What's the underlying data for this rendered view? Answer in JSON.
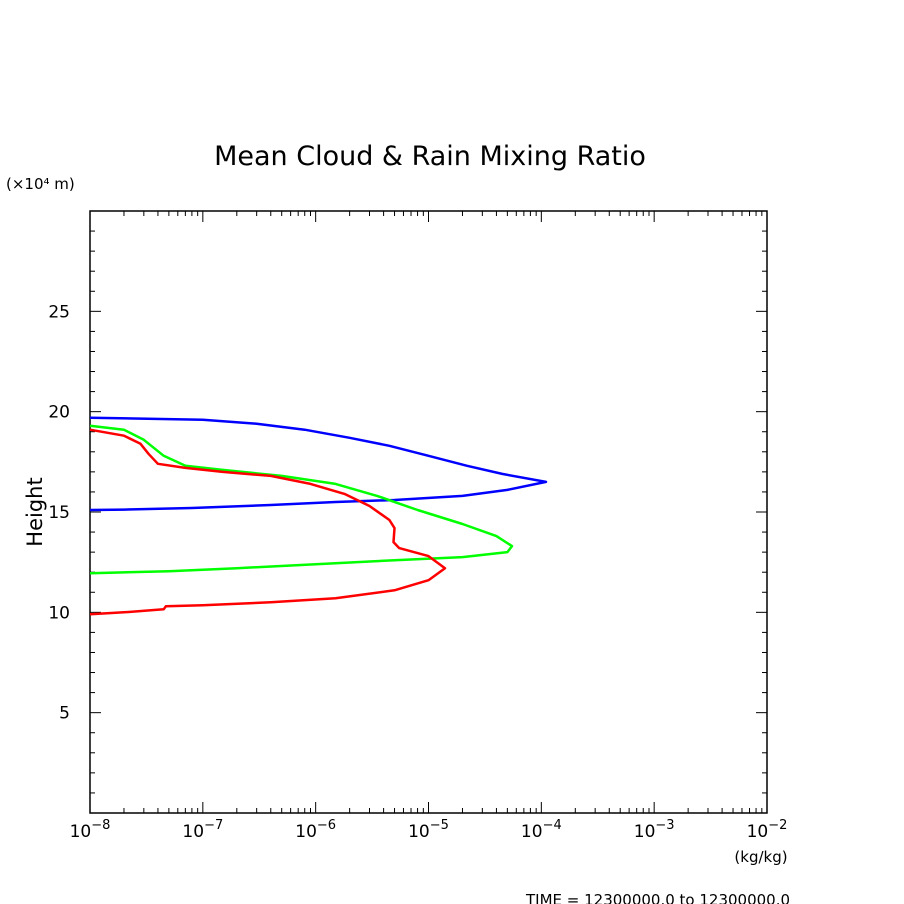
{
  "chart_data": {
    "type": "line",
    "title": "Mean Cloud & Rain Mixing Ratio",
    "ylabel": "Height",
    "y_unit": "(×10⁴ m)",
    "x_unit": "(kg/kg)",
    "x_scale": "log",
    "xlim": [
      1e-08,
      0.01
    ],
    "ylim": [
      0,
      30
    ],
    "y_ticks": [
      {
        "value": 5,
        "label": "5"
      },
      {
        "value": 10,
        "label": "10"
      },
      {
        "value": 15,
        "label": "15"
      },
      {
        "value": 20,
        "label": "20"
      },
      {
        "value": 25,
        "label": "25"
      }
    ],
    "x_ticks": [
      {
        "value": 1e-08,
        "base": "10",
        "exp": "−8"
      },
      {
        "value": 1e-07,
        "base": "10",
        "exp": "−7"
      },
      {
        "value": 1e-06,
        "base": "10",
        "exp": "−6"
      },
      {
        "value": 1e-05,
        "base": "10",
        "exp": "−5"
      },
      {
        "value": 0.0001,
        "base": "10",
        "exp": "−4"
      },
      {
        "value": 0.001,
        "base": "10",
        "exp": "−3"
      },
      {
        "value": 0.01,
        "base": "10",
        "exp": "−2"
      }
    ],
    "series": [
      {
        "color": "#0000ff",
        "points": [
          [
            1e-08,
            19.7
          ],
          [
            1e-07,
            19.6
          ],
          [
            3e-07,
            19.4
          ],
          [
            8e-07,
            19.1
          ],
          [
            2e-06,
            18.7
          ],
          [
            4.5e-06,
            18.3
          ],
          [
            1e-05,
            17.8
          ],
          [
            2.2e-05,
            17.3
          ],
          [
            4.5e-05,
            16.9
          ],
          [
            0.00011,
            16.5
          ],
          [
            5e-05,
            16.1
          ],
          [
            2e-05,
            15.8
          ],
          [
            5e-06,
            15.6
          ],
          [
            1.5e-06,
            15.5
          ],
          [
            4e-07,
            15.35
          ],
          [
            8e-08,
            15.2
          ],
          [
            2e-08,
            15.12
          ],
          [
            1e-08,
            15.1
          ]
        ]
      },
      {
        "color": "#00ff00",
        "points": [
          [
            1e-08,
            19.3
          ],
          [
            2e-08,
            19.1
          ],
          [
            3e-08,
            18.6
          ],
          [
            4.5e-08,
            17.8
          ],
          [
            7e-08,
            17.3
          ],
          [
            1.5e-07,
            17.1
          ],
          [
            5e-07,
            16.8
          ],
          [
            1.5e-06,
            16.4
          ],
          [
            3.5e-06,
            15.8
          ],
          [
            8e-06,
            15.1
          ],
          [
            2e-05,
            14.4
          ],
          [
            4e-05,
            13.8
          ],
          [
            5.5e-05,
            13.3
          ],
          [
            5e-05,
            13.0
          ],
          [
            2e-05,
            12.75
          ],
          [
            5e-06,
            12.6
          ],
          [
            1e-06,
            12.4
          ],
          [
            2e-07,
            12.2
          ],
          [
            5e-08,
            12.05
          ],
          [
            1e-08,
            11.95
          ]
        ]
      },
      {
        "color": "#ff0000",
        "points": [
          [
            1e-08,
            19.1
          ],
          [
            2e-08,
            18.8
          ],
          [
            2.8e-08,
            18.4
          ],
          [
            3.3e-08,
            17.9
          ],
          [
            4e-08,
            17.4
          ],
          [
            7e-08,
            17.2
          ],
          [
            1.5e-07,
            17.0
          ],
          [
            4e-07,
            16.8
          ],
          [
            9e-07,
            16.4
          ],
          [
            1.8e-06,
            15.9
          ],
          [
            3e-06,
            15.3
          ],
          [
            4.5e-06,
            14.6
          ],
          [
            5e-06,
            14.2
          ],
          [
            4.9e-06,
            13.5
          ],
          [
            5.5e-06,
            13.2
          ],
          [
            1e-05,
            12.8
          ],
          [
            1.4e-05,
            12.2
          ],
          [
            1e-05,
            11.6
          ],
          [
            5e-06,
            11.1
          ],
          [
            1.5e-06,
            10.7
          ],
          [
            4e-07,
            10.5
          ],
          [
            1e-07,
            10.35
          ],
          [
            4.7e-08,
            10.3
          ],
          [
            4.5e-08,
            10.15
          ],
          [
            2e-08,
            10.0
          ],
          [
            1e-08,
            9.9
          ]
        ]
      }
    ],
    "footer": "TIME = 12300000.0 to 12300000.0"
  }
}
